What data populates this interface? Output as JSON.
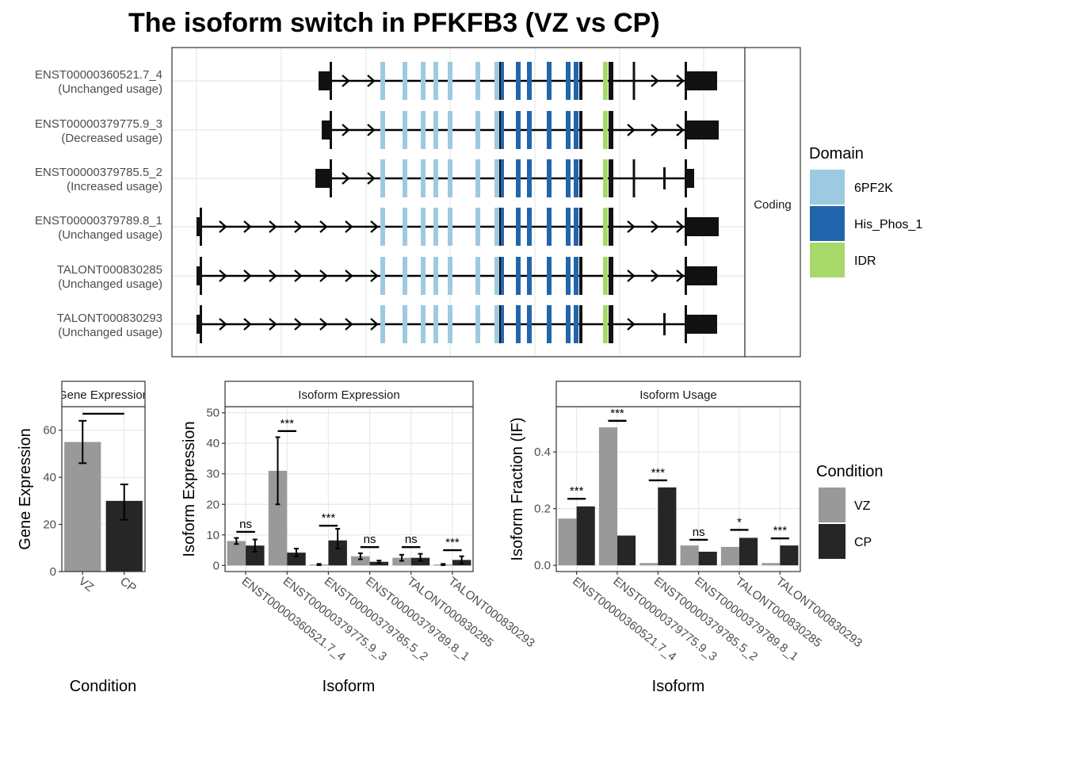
{
  "title": "The isoform switch in PFKFB3 (VZ vs CP)",
  "colors": {
    "domain_6PF2K": "#9ecae1",
    "domain_His_Phos_1": "#2166ac",
    "domain_IDR": "#a6d96a",
    "vz": "#999999",
    "cp": "#262626",
    "exon": "#111111",
    "grid": "#ebebeb"
  },
  "structure": {
    "strip_label": "Coding",
    "isoforms": [
      {
        "id": "ENST00000360521.7_4",
        "usage": "(Unchanged usage)"
      },
      {
        "id": "ENST00000379775.9_3",
        "usage": "(Decreased usage)"
      },
      {
        "id": "ENST00000379785.5_2",
        "usage": "(Increased usage)"
      },
      {
        "id": "ENST00000379789.8_1",
        "usage": "(Unchanged usage)"
      },
      {
        "id": "TALONT000830285",
        "usage": "(Unchanged usage)"
      },
      {
        "id": "TALONT000830293",
        "usage": "(Unchanged usage)"
      }
    ]
  },
  "legend_domain": {
    "title": "Domain",
    "items": [
      {
        "label": "6PF2K",
        "color": "#9ecae1"
      },
      {
        "label": "His_Phos_1",
        "color": "#2166ac"
      },
      {
        "label": "IDR",
        "color": "#a6d96a"
      }
    ]
  },
  "legend_condition": {
    "title": "Condition",
    "items": [
      {
        "label": "VZ",
        "color": "#999999"
      },
      {
        "label": "CP",
        "color": "#262626"
      }
    ]
  },
  "chart_data": [
    {
      "type": "bar",
      "panel": "Gene Expression",
      "strip": "Gene Expression",
      "categories": [
        "VZ",
        "CP"
      ],
      "values": [
        55,
        30
      ],
      "errors_low": [
        46,
        22
      ],
      "errors_high": [
        64,
        37
      ],
      "ylabel": "Gene Expression",
      "xlabel": "Condition",
      "ylim": [
        0,
        70
      ],
      "yticks": [
        0,
        20,
        40,
        60
      ],
      "significance": [
        {
          "label": "*",
          "value": 67
        }
      ]
    },
    {
      "type": "bar",
      "panel": "Isoform Expression",
      "strip": "Isoform Expression",
      "categories": [
        "ENST00000360521.7_4",
        "ENST00000379775.9_3",
        "ENST00000379785.5_2",
        "ENST00000379789.8_1",
        "TALONT000830285",
        "TALONT000830293"
      ],
      "series": [
        {
          "name": "VZ",
          "values": [
            8.0,
            31.0,
            0.3,
            3.0,
            2.5,
            0.3
          ],
          "err_low": [
            7.0,
            20.0,
            0.1,
            2.0,
            1.5,
            0.1
          ],
          "err_high": [
            9.0,
            42.0,
            0.5,
            4.0,
            3.5,
            0.5
          ]
        },
        {
          "name": "CP",
          "values": [
            6.5,
            4.2,
            8.2,
            1.2,
            2.5,
            1.8
          ],
          "err_low": [
            4.5,
            3.0,
            5.5,
            0.8,
            1.5,
            0.6
          ],
          "err_high": [
            8.5,
            5.5,
            12.0,
            1.6,
            3.8,
            3.0
          ]
        }
      ],
      "ylabel": "Isoform Expression",
      "xlabel": "Isoform",
      "ylim": [
        -2,
        52
      ],
      "yticks": [
        0,
        10,
        20,
        30,
        40,
        50
      ],
      "significance": [
        {
          "label": "ns",
          "value": 11
        },
        {
          "label": "***",
          "value": 44
        },
        {
          "label": "***",
          "value": 13
        },
        {
          "label": "ns",
          "value": 6
        },
        {
          "label": "ns",
          "value": 6
        },
        {
          "label": "***",
          "value": 5
        }
      ]
    },
    {
      "type": "bar",
      "panel": "Isoform Usage",
      "strip": "Isoform Usage",
      "categories": [
        "ENST00000360521.7_4",
        "ENST00000379775.9_3",
        "ENST00000379785.5_2",
        "ENST00000379789.8_1",
        "TALONT000830285",
        "TALONT000830293"
      ],
      "series": [
        {
          "name": "VZ",
          "values": [
            0.165,
            0.487,
            0.008,
            0.07,
            0.065,
            0.008
          ]
        },
        {
          "name": "CP",
          "values": [
            0.208,
            0.105,
            0.275,
            0.048,
            0.097,
            0.07
          ]
        }
      ],
      "ylabel": "Isoform Fraction (IF)",
      "xlabel": "Isoform",
      "ylim": [
        -0.022,
        0.56
      ],
      "yticks": [
        0.0,
        0.2,
        0.4
      ],
      "ytick_labels": [
        "0.0",
        "0.2",
        "0.4"
      ],
      "significance": [
        {
          "label": "***",
          "value": 0.235
        },
        {
          "label": "***",
          "value": 0.51
        },
        {
          "label": "***",
          "value": 0.3
        },
        {
          "label": "ns",
          "value": 0.09
        },
        {
          "label": "*",
          "value": 0.125
        },
        {
          "label": "***",
          "value": 0.095
        }
      ]
    }
  ]
}
